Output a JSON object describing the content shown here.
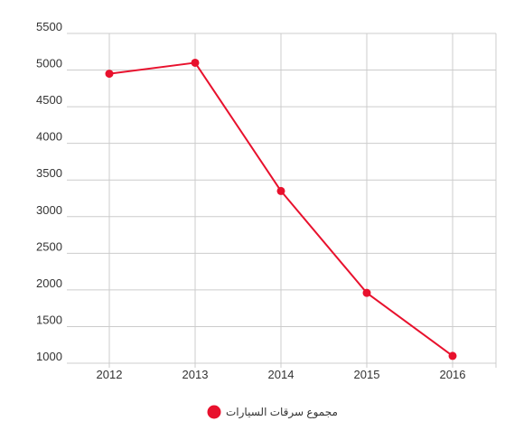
{
  "chart_data": {
    "type": "line",
    "title": "",
    "xlabel": "",
    "ylabel": "",
    "categories": [
      "2012",
      "2013",
      "2014",
      "2015",
      "2016"
    ],
    "yticks": [
      1000,
      1500,
      2000,
      2500,
      3000,
      3500,
      4000,
      4500,
      5000,
      5500
    ],
    "ylim": [
      1000,
      5500
    ],
    "grid": true,
    "legend_position": "bottom",
    "series": [
      {
        "name": "مجموع سرقات السيارات",
        "color": "#e8112d",
        "values": [
          4950,
          5100,
          3350,
          1960,
          1100
        ]
      }
    ]
  }
}
